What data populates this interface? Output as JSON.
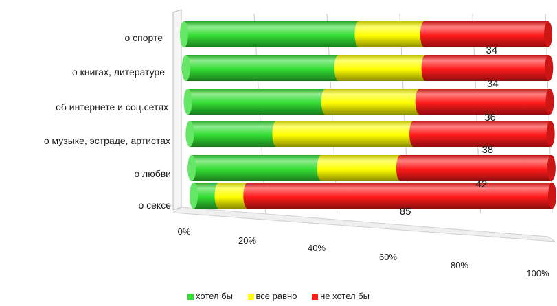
{
  "chart_data": {
    "type": "bar",
    "orientation": "horizontal",
    "stacking": "percent",
    "style": "3d-cylinder",
    "categories": [
      "о спорте",
      "о книгах, литературе",
      "об интернете и соц.сетях",
      "о музыке, эстраде, артистах",
      "о любви",
      "о сексе"
    ],
    "series": [
      {
        "name": "хотел бы",
        "color": "#33dd33",
        "values": [
          48,
          42,
          38,
          24,
          36,
          7
        ]
      },
      {
        "name": "все равно",
        "color": "#ffff00",
        "values": [
          18,
          24,
          26,
          38,
          22,
          8
        ]
      },
      {
        "name": "не хотел бы",
        "color": "#ff1a1a",
        "values": [
          34,
          34,
          36,
          38,
          42,
          85
        ]
      }
    ],
    "data_labels_series": "не хотел бы",
    "xticks": [
      "0%",
      "20%",
      "40%",
      "60%",
      "80%",
      "100%"
    ],
    "xlim": [
      0,
      100
    ],
    "grid": true,
    "legend": "bottom"
  }
}
